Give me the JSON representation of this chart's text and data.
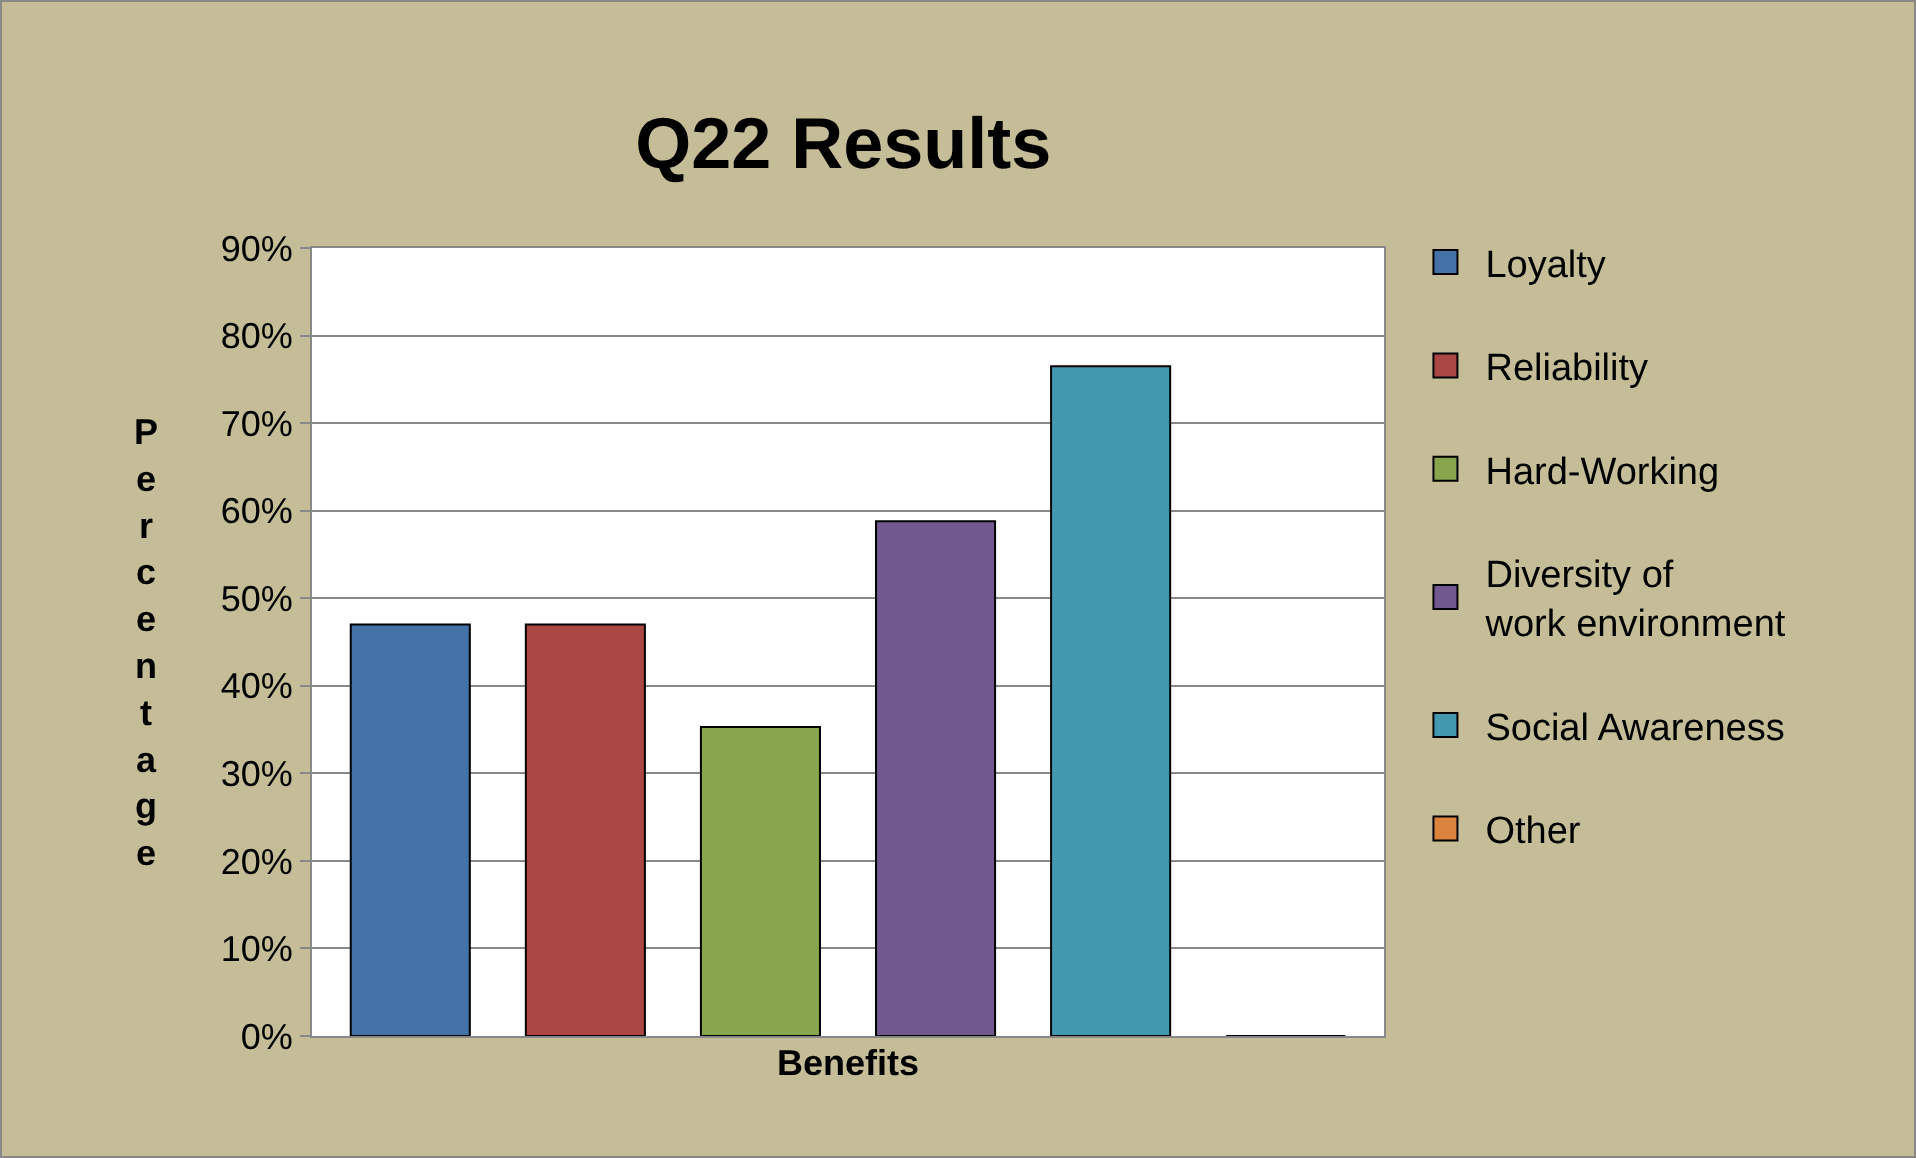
{
  "chart_data": {
    "type": "bar",
    "title": "Q22 Results",
    "xlabel": "Benefits",
    "ylabel": "Percentage",
    "categories": [
      null
    ],
    "series": [
      {
        "name": "Loyalty",
        "color": "#4572a7",
        "values": [
          47
        ]
      },
      {
        "name": "Reliability",
        "color": "#aa4643",
        "values": [
          47
        ]
      },
      {
        "name": "Hard-Working",
        "color": "#89a54e",
        "values": [
          35.3
        ]
      },
      {
        "name": "Diversity of work environment",
        "color": "#71588f",
        "values": [
          58.8
        ]
      },
      {
        "name": "Social Awareness",
        "color": "#4198af",
        "values": [
          76.5
        ]
      },
      {
        "name": "Other",
        "color": "#db843d",
        "values": [
          0
        ]
      }
    ],
    "ylim": [
      0,
      90
    ],
    "yticks": [
      {
        "value": 0,
        "label": "0%"
      },
      {
        "value": 10,
        "label": "10%"
      },
      {
        "value": 20,
        "label": "20%"
      },
      {
        "value": 30,
        "label": "30%"
      },
      {
        "value": 40,
        "label": "40%"
      },
      {
        "value": 50,
        "label": "50%"
      },
      {
        "value": 60,
        "label": "60%"
      },
      {
        "value": 70,
        "label": "70%"
      },
      {
        "value": 80,
        "label": "80%"
      },
      {
        "value": 90,
        "label": "90%"
      }
    ],
    "grid": "y",
    "legend": "right"
  }
}
